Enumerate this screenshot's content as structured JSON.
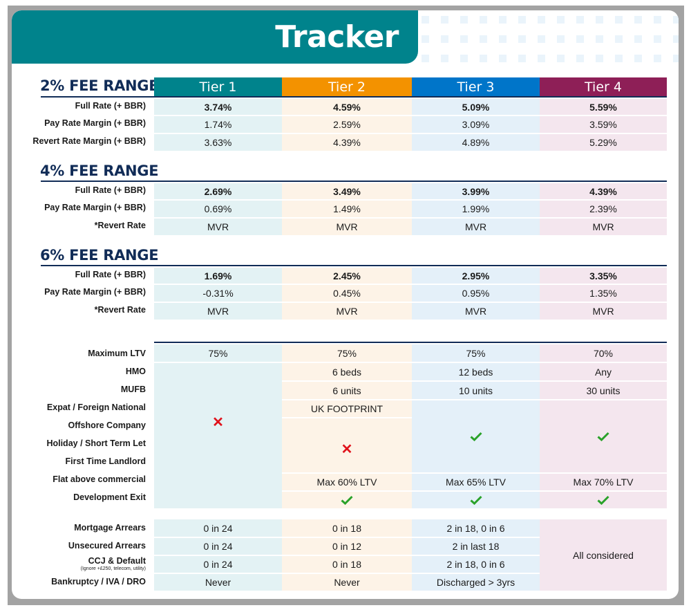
{
  "title": "Tracker",
  "colors": {
    "title_bg": "#00838c",
    "tier1": "#00838c",
    "tier2": "#f39200",
    "tier3": "#0075c9",
    "tier4": "#8e1f57",
    "section_heading": "#112c57",
    "cross": "#e0121b",
    "check": "#2aa22a"
  },
  "tiers": [
    "Tier 1",
    "Tier 2",
    "Tier 3",
    "Tier 4"
  ],
  "fee_ranges": [
    {
      "title": "2% FEE RANGE",
      "rows": [
        {
          "label": "Full Rate (+ BBR)",
          "bold": true,
          "values": [
            "3.74%",
            "4.59%",
            "5.09%",
            "5.59%"
          ]
        },
        {
          "label": "Pay Rate Margin (+ BBR)",
          "bold": false,
          "values": [
            "1.74%",
            "2.59%",
            "3.09%",
            "3.59%"
          ]
        },
        {
          "label": "Revert Rate Margin (+ BBR)",
          "bold": false,
          "values": [
            "3.63%",
            "4.39%",
            "4.89%",
            "5.29%"
          ]
        }
      ]
    },
    {
      "title": "4% FEE RANGE",
      "rows": [
        {
          "label": "Full Rate (+ BBR)",
          "bold": true,
          "values": [
            "2.69%",
            "3.49%",
            "3.99%",
            "4.39%"
          ]
        },
        {
          "label": "Pay Rate Margin (+ BBR)",
          "bold": false,
          "values": [
            "0.69%",
            "1.49%",
            "1.99%",
            "2.39%"
          ]
        },
        {
          "label": "*Revert Rate",
          "bold": false,
          "values": [
            "MVR",
            "MVR",
            "MVR",
            "MVR"
          ]
        }
      ]
    },
    {
      "title": "6% FEE RANGE",
      "rows": [
        {
          "label": "Full Rate (+ BBR)",
          "bold": true,
          "values": [
            "1.69%",
            "2.45%",
            "2.95%",
            "3.35%"
          ]
        },
        {
          "label": "Pay Rate Margin (+ BBR)",
          "bold": false,
          "values": [
            "-0.31%",
            "0.45%",
            "0.95%",
            "1.35%"
          ]
        },
        {
          "label": "*Revert Rate",
          "bold": false,
          "values": [
            "MVR",
            "MVR",
            "MVR",
            "MVR"
          ]
        }
      ]
    }
  ],
  "criteria": {
    "labels": [
      "Maximum LTV",
      "HMO",
      "MUFB",
      "Expat / Foreign National",
      "Offshore Company",
      "Holiday / Short Term Let",
      "First Time Landlord",
      "Flat above commercial",
      "Development Exit"
    ],
    "max_ltv": [
      "75%",
      "75%",
      "75%",
      "70%"
    ],
    "hmo": [
      "",
      "6 beds",
      "12 beds",
      "Any"
    ],
    "mufb": [
      "",
      "6 units",
      "10 units",
      "30 units"
    ],
    "expat": [
      "",
      "UK FOOTPRINT",
      "",
      ""
    ],
    "grouped_icons": [
      "cross-icon",
      "cross-icon",
      "check-icon",
      "check-icon"
    ],
    "flat_above_commercial": [
      "",
      "Max 60% LTV",
      "Max 65% LTV",
      "Max 70% LTV"
    ],
    "development_exit": [
      "",
      "check-icon",
      "check-icon",
      "check-icon"
    ]
  },
  "credit": {
    "rows": [
      {
        "label": "Mortgage Arrears",
        "sub": "",
        "values": [
          "0 in 24",
          "0 in 18",
          "2 in 18, 0 in 6"
        ]
      },
      {
        "label": "Unsecured Arrears",
        "sub": "",
        "values": [
          "0 in 24",
          "0 in 12",
          "2 in last 18"
        ]
      },
      {
        "label": "CCJ & Default",
        "sub": "(Ignore +£250, telecom, utility)",
        "values": [
          "0 in 24",
          "0 in 18",
          "2 in 18, 0 in 6"
        ]
      },
      {
        "label": "Bankruptcy / IVA / DRO",
        "sub": "",
        "values": [
          "Never",
          "Never",
          "Discharged > 3yrs"
        ]
      }
    ],
    "tier4_all": "All considered"
  }
}
